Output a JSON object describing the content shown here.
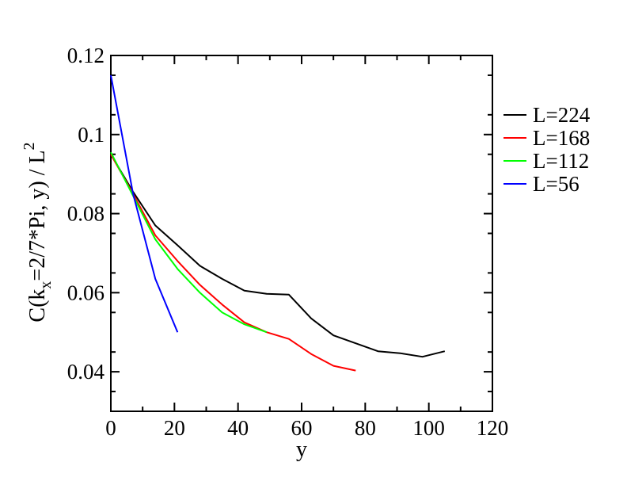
{
  "chart_data": {
    "type": "line",
    "xlabel": "y",
    "ylabel": {
      "prefix": "C(k",
      "subscript": "x",
      "middle": "=2/7*Pi, y) / L",
      "superscript": "2"
    },
    "xlim": [
      0,
      120
    ],
    "ylim": [
      0.03,
      0.12
    ],
    "xticks": [
      0,
      20,
      40,
      60,
      80,
      100,
      120
    ],
    "xtick_labels": [
      "0",
      "20",
      "40",
      "60",
      "80",
      "100",
      "120"
    ],
    "yticks": [
      0.04,
      0.06,
      0.08,
      0.1,
      0.12
    ],
    "ytick_labels": [
      "0.04",
      "0.06",
      "0.08",
      "0.1",
      "0.12"
    ],
    "legend_position": "right",
    "grid": false,
    "series": [
      {
        "name": "L=224",
        "color": "#000000",
        "x": [
          0,
          7,
          14,
          21,
          28,
          35,
          42,
          49,
          56,
          63,
          70,
          77,
          84,
          91,
          98,
          105
        ],
        "y": [
          0.095,
          0.0855,
          0.077,
          0.072,
          0.0668,
          0.0635,
          0.0605,
          0.0597,
          0.0595,
          0.0535,
          0.0492,
          0.0472,
          0.0452,
          0.0447,
          0.0438,
          0.0452
        ]
      },
      {
        "name": "L=168",
        "color": "#ff0000",
        "x": [
          0,
          7,
          14,
          21,
          28,
          35,
          42,
          49,
          56,
          63,
          70,
          77
        ],
        "y": [
          0.095,
          0.085,
          0.0745,
          0.068,
          0.062,
          0.057,
          0.0525,
          0.05,
          0.0483,
          0.0445,
          0.0415,
          0.0403
        ]
      },
      {
        "name": "L=112",
        "color": "#00ff00",
        "x": [
          0,
          7,
          14,
          21,
          28,
          35,
          42,
          49
        ],
        "y": [
          0.0955,
          0.0845,
          0.0735,
          0.066,
          0.06,
          0.055,
          0.052,
          0.05
        ]
      },
      {
        "name": "L=56",
        "color": "#0000ff",
        "x": [
          0,
          7,
          14,
          21
        ],
        "y": [
          0.115,
          0.085,
          0.0635,
          0.05
        ]
      }
    ]
  }
}
